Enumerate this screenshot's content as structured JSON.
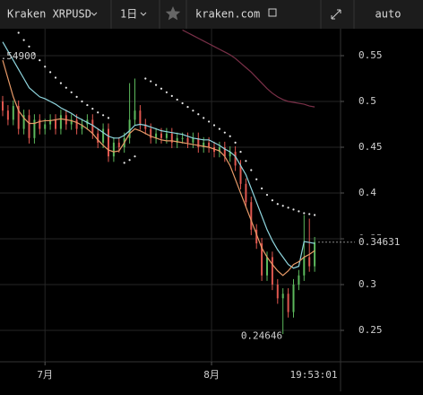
{
  "toolbar": {
    "symbol": "Kraken XRPUSD",
    "interval": "1日",
    "site": "kraken.com",
    "scale": "auto"
  },
  "chart_data": {
    "type": "candlestick",
    "up_color": "#5cb85c",
    "down_color": "#e0574f",
    "open": [
      0.5,
      0.49,
      0.48,
      0.495,
      0.47,
      0.485,
      0.46,
      0.48,
      0.47,
      0.475,
      0.48,
      0.47,
      0.485,
      0.475,
      0.48,
      0.47,
      0.475,
      0.48,
      0.465,
      0.455,
      0.47,
      0.44,
      0.455,
      0.45,
      0.46,
      0.48,
      0.49,
      0.475,
      0.47,
      0.46,
      0.465,
      0.46,
      0.465,
      0.455,
      0.46,
      0.46,
      0.455,
      0.46,
      0.45,
      0.455,
      0.45,
      0.445,
      0.45,
      0.44,
      0.445,
      0.43,
      0.41,
      0.39,
      0.36,
      0.345,
      0.31,
      0.33,
      0.3,
      0.285,
      0.29,
      0.27,
      0.3,
      0.31,
      0.33,
      0.32
    ],
    "high": [
      0.506,
      0.496,
      0.501,
      0.501,
      0.491,
      0.491,
      0.486,
      0.486,
      0.481,
      0.486,
      0.486,
      0.491,
      0.491,
      0.486,
      0.486,
      0.481,
      0.486,
      0.486,
      0.471,
      0.476,
      0.476,
      0.461,
      0.461,
      0.466,
      0.52,
      0.525,
      0.496,
      0.481,
      0.476,
      0.471,
      0.471,
      0.471,
      0.471,
      0.466,
      0.466,
      0.466,
      0.466,
      0.466,
      0.461,
      0.461,
      0.456,
      0.456,
      0.456,
      0.451,
      0.451,
      0.436,
      0.416,
      0.396,
      0.366,
      0.351,
      0.336,
      0.336,
      0.306,
      0.296,
      0.296,
      0.306,
      0.316,
      0.376,
      0.372,
      0.352
    ],
    "low": [
      0.484,
      0.474,
      0.474,
      0.464,
      0.464,
      0.454,
      0.454,
      0.464,
      0.464,
      0.469,
      0.464,
      0.464,
      0.469,
      0.469,
      0.464,
      0.464,
      0.469,
      0.459,
      0.449,
      0.449,
      0.434,
      0.434,
      0.444,
      0.444,
      0.454,
      0.474,
      0.469,
      0.464,
      0.454,
      0.454,
      0.454,
      0.454,
      0.449,
      0.449,
      0.454,
      0.449,
      0.449,
      0.444,
      0.444,
      0.444,
      0.439,
      0.439,
      0.434,
      0.434,
      0.424,
      0.404,
      0.384,
      0.354,
      0.339,
      0.304,
      0.304,
      0.294,
      0.279,
      0.246,
      0.264,
      0.264,
      0.294,
      0.304,
      0.314,
      0.314
    ],
    "close": [
      0.49,
      0.48,
      0.495,
      0.47,
      0.485,
      0.46,
      0.48,
      0.47,
      0.475,
      0.48,
      0.47,
      0.485,
      0.475,
      0.48,
      0.47,
      0.475,
      0.48,
      0.465,
      0.455,
      0.47,
      0.44,
      0.455,
      0.45,
      0.46,
      0.48,
      0.49,
      0.475,
      0.47,
      0.46,
      0.465,
      0.46,
      0.465,
      0.455,
      0.46,
      0.46,
      0.455,
      0.46,
      0.45,
      0.455,
      0.45,
      0.445,
      0.45,
      0.44,
      0.445,
      0.43,
      0.41,
      0.39,
      0.36,
      0.345,
      0.31,
      0.33,
      0.3,
      0.285,
      0.29,
      0.27,
      0.3,
      0.31,
      0.33,
      0.32,
      0.34631
    ],
    "series": [
      {
        "color": "#8fd6df",
        "values": [
          0.565,
          0.555,
          0.545,
          0.535,
          0.525,
          0.515,
          0.51,
          0.505,
          0.503,
          0.5,
          0.497,
          0.493,
          0.49,
          0.487,
          0.483,
          0.48,
          0.477,
          0.474,
          0.47,
          0.466,
          0.462,
          0.46,
          0.46,
          0.463,
          0.468,
          0.474,
          0.475,
          0.474,
          0.472,
          0.47,
          0.468,
          0.467,
          0.466,
          0.465,
          0.464,
          0.462,
          0.46,
          0.459,
          0.458,
          0.458,
          0.455,
          0.452,
          0.448,
          0.445,
          0.44,
          0.43,
          0.42,
          0.405,
          0.39,
          0.375,
          0.36,
          0.348,
          0.338,
          0.33,
          0.322,
          0.318,
          0.32,
          0.347,
          0.346,
          0.345
        ]
      },
      {
        "color": "#e89a68",
        "values": [
          0.545,
          0.525,
          0.505,
          0.49,
          0.482,
          0.476,
          0.476,
          0.478,
          0.479,
          0.479,
          0.48,
          0.481,
          0.48,
          0.479,
          0.477,
          0.474,
          0.47,
          0.465,
          0.458,
          0.452,
          0.447,
          0.445,
          0.446,
          0.455,
          0.465,
          0.47,
          0.468,
          0.465,
          0.462,
          0.46,
          0.458,
          0.457,
          0.457,
          0.456,
          0.455,
          0.454,
          0.453,
          0.452,
          0.451,
          0.45,
          0.448,
          0.446,
          0.44,
          0.43,
          0.415,
          0.4,
          0.385,
          0.37,
          0.355,
          0.34,
          0.33,
          0.322,
          0.315,
          0.31,
          0.315,
          0.322,
          0.325,
          0.33,
          0.333,
          0.337
        ]
      },
      {
        "color": "#7a3048",
        "values": [
          null,
          null,
          null,
          null,
          null,
          null,
          null,
          null,
          null,
          null,
          null,
          null,
          null,
          null,
          null,
          null,
          null,
          null,
          null,
          null,
          null,
          null,
          null,
          null,
          null,
          null,
          null,
          null,
          null,
          null,
          null,
          null,
          null,
          null,
          0.578,
          0.575,
          0.572,
          0.569,
          0.566,
          0.563,
          0.56,
          0.557,
          0.554,
          0.551,
          0.547,
          0.542,
          0.537,
          0.532,
          0.526,
          0.52,
          0.514,
          0.509,
          0.505,
          0.502,
          0.5,
          0.499,
          0.498,
          0.497,
          0.495,
          0.494
        ]
      }
    ],
    "sar": {
      "color": "#e8e8e8",
      "values": [
        null,
        null,
        null,
        0.575,
        0.567,
        0.56,
        0.552,
        0.545,
        0.538,
        0.532,
        0.526,
        0.52,
        0.515,
        0.51,
        0.505,
        0.5,
        0.496,
        0.492,
        0.488,
        0.485,
        0.482,
        null,
        null,
        0.433,
        0.436,
        0.44,
        null,
        0.525,
        0.522,
        0.518,
        0.514,
        0.51,
        0.506,
        0.502,
        0.498,
        0.494,
        0.49,
        0.486,
        0.482,
        0.478,
        0.474,
        0.47,
        0.466,
        0.462,
        0.455,
        0.445,
        0.435,
        0.425,
        0.415,
        0.405,
        0.398,
        0.392,
        0.388,
        0.386,
        0.384,
        0.382,
        0.38,
        0.378,
        0.377,
        0.376
      ]
    },
    "annotations": [
      {
        "value": 0.549,
        "label": "0.54900"
      },
      {
        "value": 0.24646,
        "label": "0.24646"
      }
    ],
    "last_price": {
      "value": 0.34631,
      "label": "0.34631"
    },
    "ylim": [
      0.2157,
      0.5794
    ],
    "yticks": [
      0.25,
      0.3,
      0.35,
      0.4,
      0.45,
      0.5,
      0.55
    ],
    "xticks": [
      {
        "value": 8,
        "label": "7月"
      },
      {
        "value": 39.5,
        "label": "8月"
      }
    ],
    "time_label": "19:53:01",
    "grid": true
  }
}
